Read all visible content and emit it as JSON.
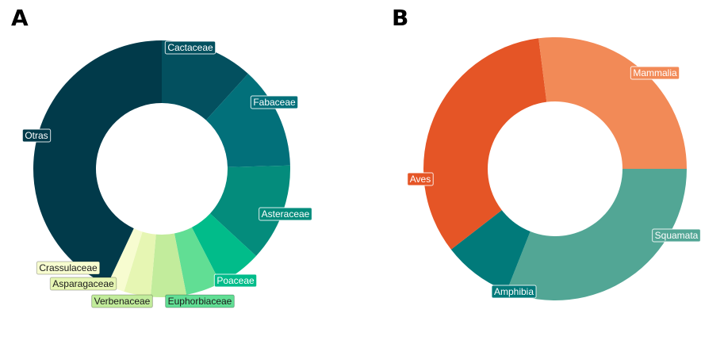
{
  "panels": {
    "a": {
      "letter": "A"
    },
    "b": {
      "letter": "B"
    }
  },
  "chart_data": [
    {
      "type": "pie",
      "panel": "A",
      "start_direction": "up",
      "slices": [
        {
          "label": "Cactaceae",
          "value": 10.5,
          "color": "#03505f",
          "label_fg": "#ffffff"
        },
        {
          "label": "Fabaceae",
          "value": 11.5,
          "color": "#02707a",
          "label_fg": "#ffffff"
        },
        {
          "label": "Asteraceae",
          "value": 11.0,
          "color": "#048c7c",
          "label_fg": "#ffffff"
        },
        {
          "label": "Poaceae",
          "value": 5.0,
          "color": "#01bc8a",
          "label_fg": "#ffffff"
        },
        {
          "label": "Euphorbiaceae",
          "value": 4.0,
          "color": "#61de94",
          "label_fg": "#1a1a1a"
        },
        {
          "label": "Verbenaceae",
          "value": 4.0,
          "color": "#c2ec9c",
          "label_fg": "#1a1a1a"
        },
        {
          "label": "Asparagaceae",
          "value": 3.0,
          "color": "#e6f6b3",
          "label_fg": "#1a1a1a"
        },
        {
          "label": "Crassulaceae",
          "value": 2.0,
          "color": "#f7fcd0",
          "label_fg": "#1a1a1a"
        },
        {
          "label": "Otras",
          "value": 38.5,
          "color": "#013a4a",
          "label_fg": "#ffffff"
        }
      ]
    },
    {
      "type": "pie",
      "panel": "B",
      "start_direction": "right",
      "slices": [
        {
          "label": "Squamata",
          "value": 31.0,
          "color": "#52a695",
          "label_fg": "#ffffff"
        },
        {
          "label": "Amphibia",
          "value": 8.5,
          "color": "#017a7a",
          "label_fg": "#ffffff"
        },
        {
          "label": "Aves",
          "value": 33.5,
          "color": "#e55526",
          "label_fg": "#ffffff"
        },
        {
          "label": "Mammalia",
          "value": 27.0,
          "color": "#f28a57",
          "label_fg": "#ffffff"
        }
      ]
    }
  ]
}
